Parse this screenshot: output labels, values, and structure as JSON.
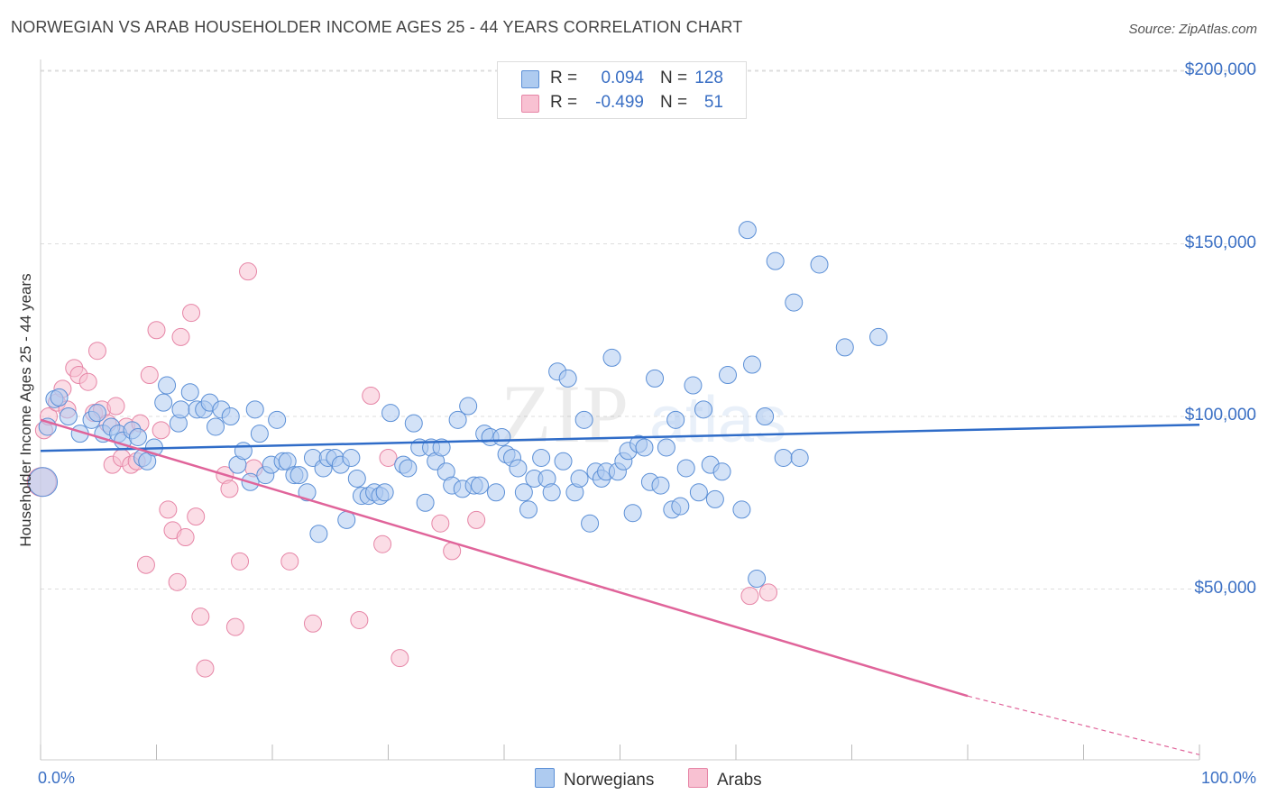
{
  "header": {
    "title": "NORWEGIAN VS ARAB HOUSEHOLDER INCOME AGES 25 - 44 YEARS CORRELATION CHART",
    "source": "Source: ZipAtlas.com"
  },
  "legend_top": [
    {
      "r_label": "R =",
      "r_value": "0.094",
      "n_label": "N =",
      "n_value": "128"
    },
    {
      "r_label": "R =",
      "r_value": "-0.499",
      "n_label": "N =",
      "n_value": "51"
    }
  ],
  "legend_bottom": [
    "Norwegians",
    "Arabs"
  ],
  "axes": {
    "y_title": "Householder Income Ages 25 - 44 years",
    "x_min_label": "0.0%",
    "x_max_label": "100.0%",
    "y_ticks": [
      "$200,000",
      "$150,000",
      "$100,000",
      "$50,000"
    ]
  },
  "colors": {
    "norwegian_fill": "#aecbf0",
    "norwegian_stroke": "#5b8fd6",
    "norwegian_line": "#2f6cc8",
    "arab_fill": "#f8c1d2",
    "arab_stroke": "#e685a6",
    "arab_line": "#e0649a",
    "axis_text": "#3a6fc4"
  },
  "chart_data": {
    "type": "scatter",
    "title": "NORWEGIAN VS ARAB HOUSEHOLDER INCOME AGES 25 - 44 YEARS CORRELATION CHART",
    "xlabel": "",
    "ylabel": "Householder Income Ages 25 - 44 years",
    "xlim": [
      0,
      100
    ],
    "ylim": [
      5000,
      210000
    ],
    "y_ticks": [
      50000,
      100000,
      150000,
      200000
    ],
    "grid": true,
    "legend_position": "top-center",
    "series": [
      {
        "name": "Norwegians",
        "r": 0.094,
        "n": 128,
        "trend": {
          "x0": 0,
          "y0": 90000,
          "x1": 100,
          "y1": 97600
        },
        "points": [
          [
            0.2,
            81000
          ],
          [
            0.6,
            97000
          ],
          [
            1.2,
            105000
          ],
          [
            1.6,
            105500
          ],
          [
            2.4,
            100000
          ],
          [
            3.4,
            95000
          ],
          [
            4.4,
            99000
          ],
          [
            4.9,
            101000
          ],
          [
            5.4,
            95000
          ],
          [
            6.1,
            97000
          ],
          [
            6.7,
            95000
          ],
          [
            7.1,
            93000
          ],
          [
            7.9,
            96000
          ],
          [
            8.4,
            94000
          ],
          [
            8.8,
            88000
          ],
          [
            9.2,
            87000
          ],
          [
            9.8,
            91000
          ],
          [
            10.6,
            104000
          ],
          [
            10.9,
            109000
          ],
          [
            11.9,
            98000
          ],
          [
            12.1,
            102000
          ],
          [
            12.9,
            107000
          ],
          [
            13.5,
            102000
          ],
          [
            14.1,
            102000
          ],
          [
            14.6,
            104000
          ],
          [
            15.1,
            97000
          ],
          [
            15.6,
            102000
          ],
          [
            16.4,
            100000
          ],
          [
            17.0,
            86000
          ],
          [
            17.5,
            90000
          ],
          [
            18.1,
            81000
          ],
          [
            18.5,
            102000
          ],
          [
            18.9,
            95000
          ],
          [
            19.4,
            83000
          ],
          [
            19.9,
            86000
          ],
          [
            20.4,
            99000
          ],
          [
            20.9,
            87000
          ],
          [
            21.3,
            87000
          ],
          [
            21.9,
            83000
          ],
          [
            22.3,
            83000
          ],
          [
            23.0,
            78000
          ],
          [
            23.5,
            88000
          ],
          [
            24.0,
            66000
          ],
          [
            24.4,
            85000
          ],
          [
            24.8,
            88000
          ],
          [
            25.4,
            88000
          ],
          [
            25.9,
            86000
          ],
          [
            26.4,
            70000
          ],
          [
            26.8,
            88000
          ],
          [
            27.3,
            82000
          ],
          [
            27.7,
            77000
          ],
          [
            28.3,
            77000
          ],
          [
            28.8,
            78000
          ],
          [
            29.3,
            77000
          ],
          [
            29.7,
            78000
          ],
          [
            30.2,
            101000
          ],
          [
            31.3,
            86000
          ],
          [
            31.7,
            85000
          ],
          [
            32.2,
            98000
          ],
          [
            32.7,
            91000
          ],
          [
            33.2,
            75000
          ],
          [
            33.7,
            91000
          ],
          [
            34.1,
            87000
          ],
          [
            34.6,
            91000
          ],
          [
            35.0,
            84000
          ],
          [
            35.5,
            80000
          ],
          [
            36.0,
            99000
          ],
          [
            36.4,
            79000
          ],
          [
            36.9,
            103000
          ],
          [
            37.4,
            80000
          ],
          [
            37.9,
            80000
          ],
          [
            38.3,
            95000
          ],
          [
            38.8,
            94000
          ],
          [
            39.3,
            78000
          ],
          [
            39.8,
            94000
          ],
          [
            40.2,
            89000
          ],
          [
            40.7,
            88000
          ],
          [
            41.2,
            85000
          ],
          [
            41.7,
            78000
          ],
          [
            42.1,
            73000
          ],
          [
            42.6,
            82000
          ],
          [
            43.2,
            88000
          ],
          [
            43.7,
            82000
          ],
          [
            44.1,
            78000
          ],
          [
            44.6,
            113000
          ],
          [
            45.1,
            87000
          ],
          [
            45.5,
            111000
          ],
          [
            46.1,
            78000
          ],
          [
            46.5,
            82000
          ],
          [
            46.9,
            99000
          ],
          [
            47.4,
            69000
          ],
          [
            47.9,
            84000
          ],
          [
            48.4,
            82000
          ],
          [
            48.8,
            84000
          ],
          [
            49.3,
            117000
          ],
          [
            49.8,
            84000
          ],
          [
            50.3,
            87000
          ],
          [
            50.7,
            90000
          ],
          [
            51.1,
            72000
          ],
          [
            51.6,
            92000
          ],
          [
            52.1,
            91000
          ],
          [
            52.6,
            81000
          ],
          [
            53.0,
            111000
          ],
          [
            53.5,
            80000
          ],
          [
            54.0,
            91000
          ],
          [
            54.5,
            73000
          ],
          [
            54.8,
            99000
          ],
          [
            55.2,
            74000
          ],
          [
            55.7,
            85000
          ],
          [
            56.3,
            109000
          ],
          [
            56.8,
            78000
          ],
          [
            57.2,
            102000
          ],
          [
            57.8,
            86000
          ],
          [
            58.2,
            76000
          ],
          [
            58.8,
            84000
          ],
          [
            59.3,
            112000
          ],
          [
            60.5,
            73000
          ],
          [
            61.0,
            154000
          ],
          [
            61.4,
            115000
          ],
          [
            61.8,
            53000
          ],
          [
            62.5,
            100000
          ],
          [
            63.4,
            145000
          ],
          [
            64.1,
            88000
          ],
          [
            65.0,
            133000
          ],
          [
            65.5,
            88000
          ],
          [
            67.2,
            144000
          ],
          [
            69.4,
            120000
          ],
          [
            72.3,
            123000
          ]
        ]
      },
      {
        "name": "Arabs",
        "r": -0.499,
        "n": 51,
        "trend": {
          "x0": 0,
          "y0": 99000,
          "x1": 80,
          "y1": 19000,
          "dashed_to": {
            "x": 100,
            "y": 2000
          }
        },
        "points": [
          [
            0.1,
            81000
          ],
          [
            0.3,
            96000
          ],
          [
            0.7,
            100000
          ],
          [
            1.4,
            104000
          ],
          [
            1.9,
            108000
          ],
          [
            2.3,
            102000
          ],
          [
            2.9,
            114000
          ],
          [
            3.3,
            112000
          ],
          [
            4.1,
            110000
          ],
          [
            4.6,
            101000
          ],
          [
            4.9,
            119000
          ],
          [
            5.3,
            102000
          ],
          [
            5.8,
            98000
          ],
          [
            6.2,
            86000
          ],
          [
            6.5,
            103000
          ],
          [
            7.0,
            88000
          ],
          [
            7.4,
            97000
          ],
          [
            7.8,
            86000
          ],
          [
            8.3,
            87000
          ],
          [
            8.6,
            98000
          ],
          [
            9.1,
            57000
          ],
          [
            9.4,
            112000
          ],
          [
            10.0,
            125000
          ],
          [
            10.4,
            96000
          ],
          [
            11.0,
            73000
          ],
          [
            11.4,
            67000
          ],
          [
            11.8,
            52000
          ],
          [
            12.1,
            123000
          ],
          [
            12.5,
            65000
          ],
          [
            13.0,
            130000
          ],
          [
            13.4,
            71000
          ],
          [
            13.8,
            42000
          ],
          [
            14.2,
            27000
          ],
          [
            15.9,
            83000
          ],
          [
            16.3,
            79000
          ],
          [
            16.8,
            39000
          ],
          [
            17.2,
            58000
          ],
          [
            17.9,
            142000
          ],
          [
            18.4,
            85000
          ],
          [
            21.5,
            58000
          ],
          [
            23.5,
            40000
          ],
          [
            27.5,
            41000
          ],
          [
            28.5,
            106000
          ],
          [
            29.5,
            63000
          ],
          [
            31.0,
            30000
          ],
          [
            34.5,
            69000
          ],
          [
            35.5,
            61000
          ],
          [
            37.6,
            70000
          ],
          [
            61.2,
            48000
          ],
          [
            62.8,
            49000
          ],
          [
            30.0,
            88000
          ]
        ]
      }
    ]
  }
}
